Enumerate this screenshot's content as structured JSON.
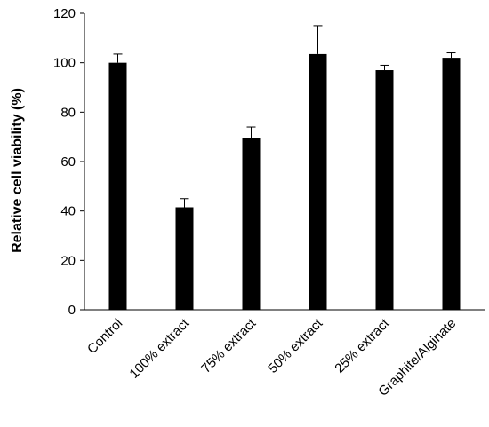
{
  "chart_data": {
    "type": "bar",
    "title": "",
    "xlabel": "",
    "ylabel": "Relative cell viability (%)",
    "ylim": [
      0,
      120
    ],
    "yticks": [
      0,
      20,
      40,
      60,
      80,
      100,
      120
    ],
    "categories": [
      "Control",
      "100% extract",
      "75% extract",
      "50% extract",
      "25% extract",
      "Graphite/Alginate"
    ],
    "values": [
      100,
      41.5,
      69.5,
      103.5,
      97,
      102
    ],
    "error": [
      3.5,
      3.5,
      4.5,
      11.5,
      2,
      2
    ],
    "bar_color": "#000000",
    "grid": false,
    "legend": "none"
  }
}
